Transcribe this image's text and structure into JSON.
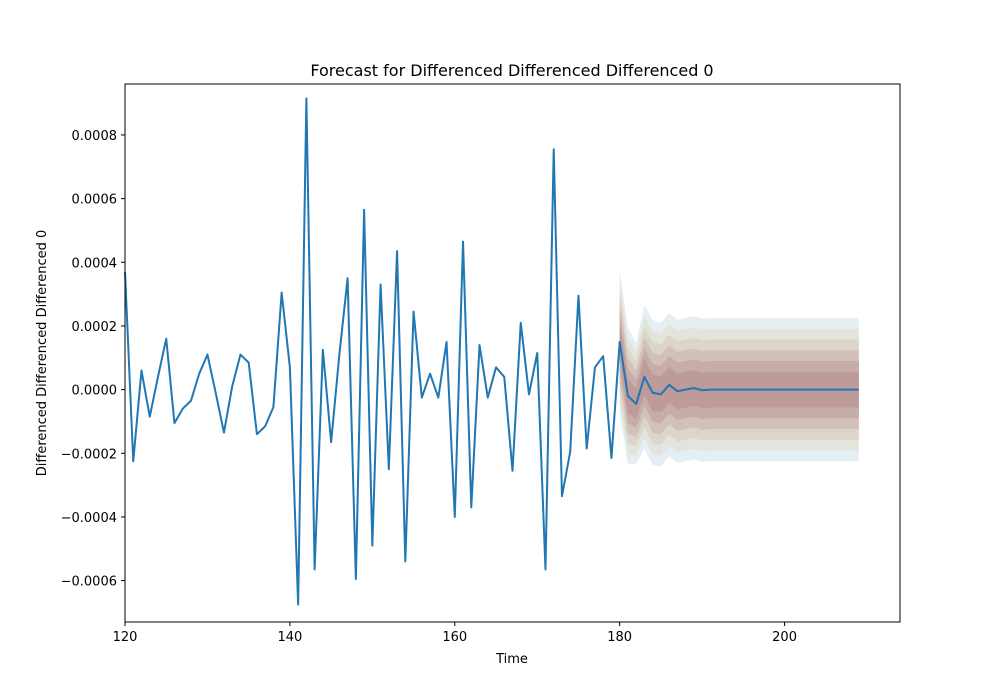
{
  "chart_data": {
    "type": "line",
    "title": "Forecast for Differenced Differenced Differenced 0",
    "xlabel": "Time",
    "ylabel": "Differenced Differenced Differenced 0",
    "xlim": [
      120,
      214
    ],
    "ylim": [
      -0.00073,
      0.00096
    ],
    "xticks": [
      120,
      140,
      160,
      180,
      200
    ],
    "yticks": [
      -0.0006,
      -0.0004,
      -0.0002,
      0.0,
      0.0002,
      0.0004,
      0.0006,
      0.0008
    ],
    "yticks_labels": [
      "−0.0006",
      "−0.0004",
      "−0.0002",
      "0.0000",
      "0.0002",
      "0.0004",
      "0.0006",
      "0.0008"
    ],
    "grid": false,
    "line_color": "#1f77b4",
    "series": [
      {
        "x": [
          120,
          121,
          122,
          123,
          124,
          125,
          126,
          127,
          128,
          129,
          130,
          131,
          132,
          133,
          134,
          135,
          136,
          137,
          138,
          139,
          140,
          141,
          142,
          143,
          144,
          145,
          146,
          147,
          148,
          149,
          150,
          151,
          152,
          153,
          154,
          155,
          156,
          157,
          158,
          159,
          160,
          161,
          162,
          163,
          164,
          165,
          166,
          167,
          168,
          169,
          170,
          171,
          172,
          173,
          174,
          175,
          176,
          177,
          178,
          179,
          180,
          181,
          182,
          183,
          184,
          185,
          186,
          187,
          188,
          189,
          190,
          191,
          192,
          193,
          194,
          195,
          196,
          197,
          198,
          199,
          200,
          201,
          202,
          203,
          204,
          205,
          206,
          207,
          208,
          209
        ],
        "values": [
          0.00037,
          -0.000225,
          6e-05,
          -8.5e-05,
          4e-05,
          0.00016,
          -0.000105,
          -6e-05,
          -3.5e-05,
          5e-05,
          0.00011,
          -1e-05,
          -0.000135,
          1e-05,
          0.00011,
          8.5e-05,
          -0.00014,
          -0.000115,
          -5.5e-05,
          0.000305,
          7e-05,
          -0.000675,
          0.000915,
          -0.000565,
          0.000125,
          -0.000165,
          0.00011,
          0.00035,
          -0.000595,
          0.000565,
          -0.00049,
          0.00033,
          -0.00025,
          0.000435,
          -0.00054,
          0.000245,
          -2.5e-05,
          5e-05,
          -2.5e-05,
          0.00015,
          -0.0004,
          0.000465,
          -0.00037,
          0.00014,
          -2.5e-05,
          7e-05,
          4e-05,
          -0.000255,
          0.00021,
          -1.5e-05,
          0.000115,
          -0.000565,
          0.000755,
          -0.000335,
          -0.000195,
          0.000295,
          -0.000185,
          7e-05,
          0.000105,
          -0.000215,
          0.00015,
          -2e-05,
          -4.5e-05,
          4e-05,
          -1e-05,
          -1.5e-05,
          1.5e-05,
          -5e-06,
          0.0,
          5e-06,
          -2e-06,
          0.0,
          0.0,
          0.0,
          0.0,
          0.0,
          0.0,
          0.0,
          0.0,
          0.0,
          0.0,
          0.0,
          0.0,
          0.0,
          0.0,
          0.0,
          0.0,
          0.0,
          0.0,
          0.0
        ]
      }
    ],
    "forecast_bands": {
      "x": [
        180,
        181,
        182,
        183,
        184,
        185,
        186,
        187,
        188,
        189,
        190,
        191,
        192,
        193,
        194,
        195,
        196,
        197,
        198,
        199,
        200,
        201,
        202,
        203,
        204,
        205,
        206,
        207,
        208,
        209
      ],
      "mean": [
        0.00015,
        -2e-05,
        -4.5e-05,
        4e-05,
        -1e-05,
        -1.5e-05,
        1.5e-05,
        -5e-06,
        0.0,
        5e-06,
        -2e-06,
        0.0,
        0.0,
        0.0,
        0.0,
        0.0,
        0.0,
        0.0,
        0.0,
        0.0,
        0.0,
        0.0,
        0.0,
        0.0,
        0.0,
        0.0,
        0.0,
        0.0,
        0.0,
        0.0
      ],
      "widths": [
        0.000225,
        0.000215,
        0.00019,
        0.000225,
        0.000228,
        0.000225,
        0.000225,
        0.000225,
        0.000225,
        0.000225,
        0.000225,
        0.000225,
        0.000225,
        0.000225,
        0.000225,
        0.000225,
        0.000225,
        0.000225,
        0.000225,
        0.000225,
        0.000225,
        0.000225,
        0.000225,
        0.000225,
        0.000225,
        0.000225,
        0.000225,
        0.000225,
        0.000225,
        0.000225
      ],
      "levels": [
        1.0,
        0.85,
        0.7,
        0.55,
        0.4,
        0.25
      ],
      "colors": [
        "#dbe8ef",
        "#e3e1d6",
        "#d9cfc3",
        "#cdb9b3",
        "#c2a6a4",
        "#b89596"
      ]
    }
  }
}
